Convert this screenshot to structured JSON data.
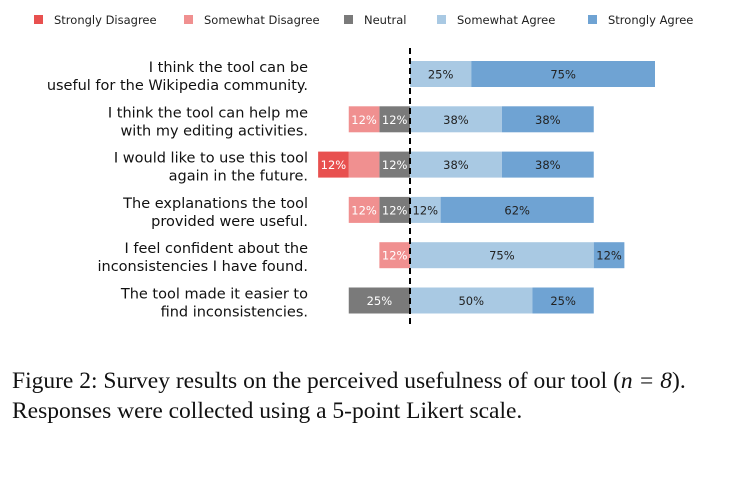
{
  "chart_data": {
    "type": "bar",
    "orientation": "horizontal",
    "stacked": "diverging",
    "unit": "%",
    "legend_position": "top",
    "grid": false,
    "center_line": "dashed",
    "legend": [
      {
        "name": "Strongly Disagree",
        "color": "#e8504f"
      },
      {
        "name": "Somewhat Disagree",
        "color": "#f09090"
      },
      {
        "name": "Neutral",
        "color": "#7a7a7a"
      },
      {
        "name": "Somewhat Agree",
        "color": "#a9c9e3"
      },
      {
        "name": "Strongly Agree",
        "color": "#6fa3d3"
      }
    ],
    "categories": [
      [
        "I think the tool can be",
        "useful for the Wikipedia community."
      ],
      [
        "I think the tool can help me",
        "with my editing activities."
      ],
      [
        "I would like to use this tool",
        "again in the future."
      ],
      [
        "The explanations the tool",
        "provided were useful."
      ],
      [
        "I feel confident about the",
        "inconsistencies I have found."
      ],
      [
        "The tool made it easier to",
        "find inconsistencies."
      ]
    ],
    "series": [
      {
        "name": "Strongly Disagree",
        "values": [
          0,
          0,
          12.5,
          0,
          0,
          0
        ],
        "labels": [
          "",
          "",
          "12%",
          "",
          "",
          ""
        ]
      },
      {
        "name": "Somewhat Disagree",
        "values": [
          0,
          12.5,
          12.5,
          12.5,
          12.5,
          0
        ],
        "labels": [
          "",
          "12%",
          "",
          "12%",
          "12%",
          ""
        ]
      },
      {
        "name": "Neutral",
        "values": [
          0,
          12.5,
          12.5,
          12.5,
          0,
          25
        ],
        "labels": [
          "",
          "12%",
          "12%",
          "12%",
          "",
          "25%"
        ]
      },
      {
        "name": "Somewhat Agree",
        "values": [
          25,
          37.5,
          37.5,
          12.5,
          75,
          50
        ],
        "labels": [
          "25%",
          "38%",
          "38%",
          "12%",
          "75%",
          "50%"
        ]
      },
      {
        "name": "Strongly Agree",
        "values": [
          75,
          37.5,
          37.5,
          62.5,
          12.5,
          25
        ],
        "labels": [
          "75%",
          "38%",
          "38%",
          "62%",
          "12%",
          "25%"
        ]
      }
    ]
  },
  "caption": {
    "prefix": "Figure 2: Survey results on the perceived usefulness of our tool (",
    "math": "n = 8",
    "suffix": "). Responses were collected using a 5-point Likert scale."
  }
}
